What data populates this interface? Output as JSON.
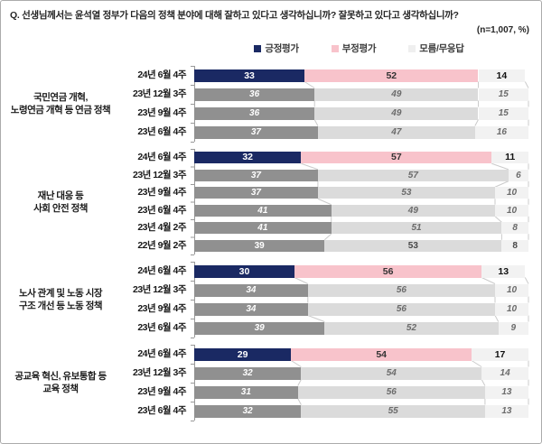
{
  "header": {
    "question": "Q. 선생님께서는 윤석열 정부가 다음의 정책 분야에 대해 잘하고 있다고 생각하십니까? 잘못하고 있다고 생각하십니까?",
    "sample_note": "(n=1,007, %)"
  },
  "legend": [
    {
      "label": "긍정평가",
      "color": "#1A2963"
    },
    {
      "label": "부정평가",
      "color": "#F8C3CB"
    },
    {
      "label": "모름/무응답",
      "color": "#EFEFEF"
    }
  ],
  "colors": {
    "current": {
      "fills": [
        "#1A2963",
        "#F8C3CB",
        "#F2F2F2"
      ],
      "text": [
        "#FFFFFF",
        "#333333",
        "#111111"
      ]
    },
    "past": {
      "fills": [
        "#909090",
        "#DBDBDB",
        "#F2F2F2"
      ],
      "text": [
        "#FFFFFF",
        "#6B6B6B",
        "#6B6B6B"
      ]
    },
    "past_upright": {
      "fills": [
        "#909090",
        "#DBDBDB",
        "#F2F2F2"
      ],
      "text": [
        "#FFFFFF",
        "#474747",
        "#474747"
      ]
    },
    "connector": "#CBCBCB",
    "axis": "#999999",
    "frame_border": "#ABABAB"
  },
  "chart_data": {
    "type": "bar",
    "orientation": "horizontal",
    "stacked": true,
    "axis_range": [
      0,
      100
    ],
    "unit": "%",
    "series_labels": [
      "긍정평가",
      "부정평가",
      "모름/무응답"
    ],
    "series_names_en": [
      "positive",
      "negative",
      "unknown"
    ],
    "groups": [
      {
        "category": [
          "국민연금 개혁,",
          "노령연금 개혁 등 연금 정책"
        ],
        "rows": [
          {
            "date": "24년 6월 4주",
            "values": [
              33,
              52,
              14
            ],
            "style": "current"
          },
          {
            "date": "23년 12월 3주",
            "values": [
              36,
              49,
              15
            ],
            "style": "past"
          },
          {
            "date": "23년 9월 4주",
            "values": [
              36,
              49,
              15
            ],
            "style": "past"
          },
          {
            "date": "23년 6월 4주",
            "values": [
              37,
              47,
              16
            ],
            "style": "past"
          }
        ]
      },
      {
        "category": [
          "재난 대응 등",
          "사회 안전 정책"
        ],
        "rows": [
          {
            "date": "24년 6월 4주",
            "values": [
              32,
              57,
              11
            ],
            "style": "current"
          },
          {
            "date": "23년 12월 3주",
            "values": [
              37,
              57,
              6
            ],
            "style": "past"
          },
          {
            "date": "23년 9월 4주",
            "values": [
              37,
              53,
              10
            ],
            "style": "past"
          },
          {
            "date": "23년 6월 4주",
            "values": [
              41,
              49,
              10
            ],
            "style": "past"
          },
          {
            "date": "23년 4월 2주",
            "values": [
              41,
              51,
              8
            ],
            "style": "past"
          },
          {
            "date": "22년 9월 2주",
            "values": [
              39,
              53,
              8
            ],
            "style": "past_upright"
          }
        ]
      },
      {
        "category": [
          "노사 관계 및 노동 시장",
          "구조 개선 등 노동 정책"
        ],
        "rows": [
          {
            "date": "24년 6월 4주",
            "values": [
              30,
              56,
              13
            ],
            "style": "current"
          },
          {
            "date": "23년 12월 3주",
            "values": [
              34,
              56,
              10
            ],
            "style": "past"
          },
          {
            "date": "23년 9월 4주",
            "values": [
              34,
              56,
              10
            ],
            "style": "past"
          },
          {
            "date": "23년 6월 4주",
            "values": [
              39,
              52,
              9
            ],
            "style": "past"
          }
        ]
      },
      {
        "category": [
          "공교육 혁신, 유보통합 등",
          "교육 정책"
        ],
        "rows": [
          {
            "date": "24년 6월 4주",
            "values": [
              29,
              54,
              17
            ],
            "style": "current"
          },
          {
            "date": "23년 12월 3주",
            "values": [
              32,
              54,
              14
            ],
            "style": "past"
          },
          {
            "date": "23년 9월 4주",
            "values": [
              31,
              56,
              13
            ],
            "style": "past"
          },
          {
            "date": "23년 6월 4주",
            "values": [
              32,
              55,
              13
            ],
            "style": "past"
          }
        ]
      }
    ]
  }
}
